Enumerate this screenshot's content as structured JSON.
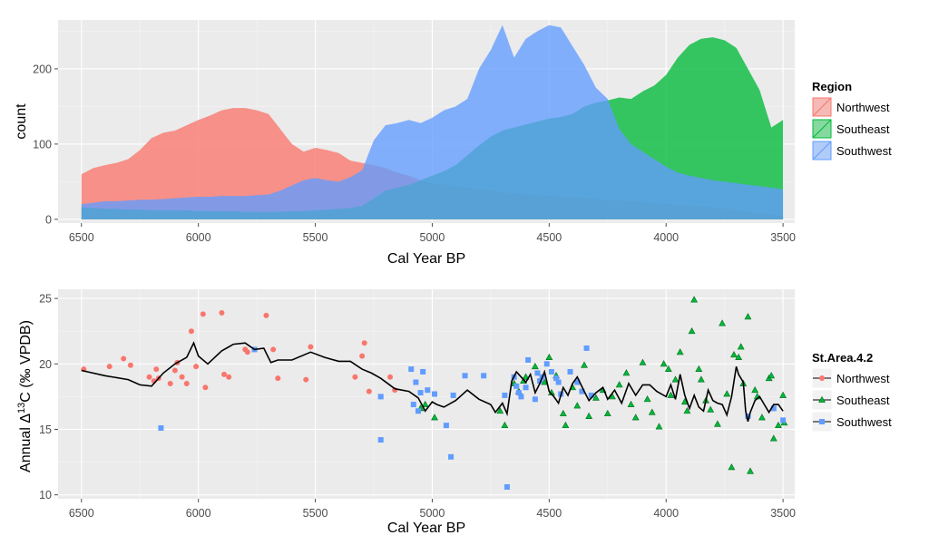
{
  "colors": {
    "panel_bg": "#ebebeb",
    "grid_major": "#ffffff",
    "grid_minor": "#f5f5f5",
    "northwest": "#F8766D",
    "southeast": "#00BA38",
    "southwest": "#619CFF",
    "smooth_line": "#000000",
    "axis_text": "#4d4d4d"
  },
  "chart_data": [
    {
      "type": "area",
      "xlabel": "Cal Year BP",
      "ylabel": "count",
      "x_reversed": true,
      "xlim": [
        6600,
        3450
      ],
      "ylim": [
        -5,
        265
      ],
      "x_ticks": [
        6500,
        6000,
        5500,
        5000,
        4500,
        4000,
        3500
      ],
      "y_ticks": [
        0,
        100,
        200
      ],
      "grid": true,
      "legend": {
        "title": "Region",
        "placement": "right",
        "entries": [
          "Northwest",
          "Southeast",
          "Southwest"
        ]
      },
      "x": [
        6500,
        6450,
        6400,
        6350,
        6300,
        6250,
        6200,
        6150,
        6100,
        6050,
        6000,
        5950,
        5900,
        5850,
        5800,
        5750,
        5700,
        5650,
        5600,
        5550,
        5500,
        5450,
        5400,
        5350,
        5300,
        5250,
        5200,
        5150,
        5100,
        5050,
        5000,
        4950,
        4900,
        4850,
        4800,
        4750,
        4700,
        4650,
        4600,
        4550,
        4500,
        4450,
        4400,
        4350,
        4300,
        4250,
        4200,
        4150,
        4100,
        4050,
        4000,
        3950,
        3900,
        3850,
        3800,
        3750,
        3700,
        3650,
        3600,
        3550,
        3500
      ],
      "series": [
        {
          "name": "Northwest",
          "values": [
            60,
            68,
            72,
            75,
            80,
            92,
            108,
            115,
            118,
            125,
            132,
            138,
            145,
            148,
            148,
            145,
            140,
            120,
            100,
            90,
            95,
            92,
            88,
            78,
            75,
            72,
            68,
            62,
            58,
            52,
            48,
            46,
            44,
            42,
            40,
            38,
            36,
            34,
            33,
            32,
            31,
            30,
            29,
            28,
            27,
            26,
            25,
            24,
            23,
            22,
            20,
            19,
            18,
            17,
            16,
            14,
            12,
            10,
            8,
            6,
            5
          ]
        },
        {
          "name": "Southeast",
          "values": [
            16,
            15,
            14,
            14,
            13,
            13,
            12,
            12,
            12,
            12,
            11,
            11,
            11,
            11,
            10,
            10,
            10,
            10,
            11,
            11,
            12,
            13,
            14,
            15,
            18,
            28,
            38,
            42,
            46,
            52,
            58,
            64,
            72,
            85,
            98,
            110,
            118,
            122,
            126,
            130,
            134,
            136,
            140,
            150,
            155,
            158,
            162,
            160,
            170,
            178,
            192,
            215,
            232,
            240,
            242,
            238,
            228,
            200,
            172,
            122,
            132
          ]
        },
        {
          "name": "Southwest",
          "values": [
            20,
            22,
            24,
            24,
            25,
            26,
            26,
            27,
            28,
            29,
            30,
            30,
            31,
            31,
            31,
            32,
            33,
            38,
            45,
            52,
            55,
            52,
            50,
            56,
            65,
            105,
            125,
            128,
            132,
            128,
            135,
            145,
            150,
            160,
            200,
            225,
            258,
            215,
            240,
            250,
            258,
            255,
            230,
            205,
            175,
            160,
            120,
            100,
            90,
            80,
            70,
            62,
            58,
            55,
            52,
            50,
            48,
            46,
            44,
            42,
            40
          ]
        }
      ]
    },
    {
      "type": "scatter",
      "xlabel": "Cal Year BP",
      "ylabel": "Annual Δ13C (‰ VPDB)",
      "x_reversed": true,
      "xlim": [
        6600,
        3450
      ],
      "ylim": [
        9.7,
        25.7
      ],
      "x_ticks": [
        6500,
        6000,
        5500,
        5000,
        4500,
        4000,
        3500
      ],
      "y_ticks": [
        10,
        15,
        20,
        25
      ],
      "grid": true,
      "legend": {
        "title": "St.Area.4.2",
        "placement": "right",
        "entries": [
          "Northwest",
          "Southeast",
          "Southwest"
        ]
      },
      "series": [
        {
          "name": "Northwest",
          "marker": "circle",
          "points": [
            [
              6490,
              19.6
            ],
            [
              6380,
              19.8
            ],
            [
              6320,
              20.4
            ],
            [
              6290,
              19.9
            ],
            [
              6210,
              19.0
            ],
            [
              6190,
              18.7
            ],
            [
              6180,
              19.6
            ],
            [
              6170,
              18.9
            ],
            [
              6120,
              18.5
            ],
            [
              6100,
              19.5
            ],
            [
              6090,
              20.1
            ],
            [
              6070,
              19.0
            ],
            [
              6050,
              18.5
            ],
            [
              6030,
              22.5
            ],
            [
              6010,
              19.8
            ],
            [
              5980,
              23.8
            ],
            [
              5970,
              18.2
            ],
            [
              5900,
              23.9
            ],
            [
              5890,
              19.2
            ],
            [
              5870,
              19.0
            ],
            [
              5800,
              21.1
            ],
            [
              5790,
              20.9
            ],
            [
              5710,
              23.7
            ],
            [
              5680,
              21.1
            ],
            [
              5660,
              18.9
            ],
            [
              5540,
              18.8
            ],
            [
              5520,
              21.3
            ],
            [
              5330,
              19.0
            ],
            [
              5300,
              20.6
            ],
            [
              5290,
              21.6
            ],
            [
              5270,
              17.9
            ],
            [
              5180,
              19.0
            ],
            [
              5160,
              18.0
            ]
          ]
        },
        {
          "name": "Southeast",
          "marker": "triangle",
          "points": [
            [
              5050,
              16.6
            ],
            [
              5030,
              16.9
            ],
            [
              4990,
              15.9
            ],
            [
              4710,
              16.4
            ],
            [
              4690,
              15.3
            ],
            [
              4650,
              18.5
            ],
            [
              4630,
              17.9
            ],
            [
              4610,
              18.7
            ],
            [
              4600,
              19.0
            ],
            [
              4560,
              19.8
            ],
            [
              4520,
              18.6
            ],
            [
              4500,
              20.5
            ],
            [
              4490,
              17.8
            ],
            [
              4470,
              19.1
            ],
            [
              4440,
              16.2
            ],
            [
              4430,
              15.3
            ],
            [
              4400,
              18.2
            ],
            [
              4380,
              16.8
            ],
            [
              4350,
              19.9
            ],
            [
              4330,
              16.0
            ],
            [
              4300,
              17.4
            ],
            [
              4270,
              18.0
            ],
            [
              4250,
              16.2
            ],
            [
              4230,
              17.5
            ],
            [
              4200,
              18.4
            ],
            [
              4170,
              19.3
            ],
            [
              4150,
              16.9
            ],
            [
              4130,
              15.9
            ],
            [
              4100,
              20.1
            ],
            [
              4080,
              17.3
            ],
            [
              4060,
              16.3
            ],
            [
              4030,
              15.2
            ],
            [
              4010,
              20.0
            ],
            [
              3990,
              19.6
            ],
            [
              3980,
              17.6
            ],
            [
              3960,
              18.8
            ],
            [
              3940,
              20.9
            ],
            [
              3920,
              17.1
            ],
            [
              3910,
              16.4
            ],
            [
              3890,
              22.5
            ],
            [
              3880,
              24.9
            ],
            [
              3860,
              19.6
            ],
            [
              3850,
              18.8
            ],
            [
              3830,
              17.2
            ],
            [
              3810,
              16.5
            ],
            [
              3780,
              15.4
            ],
            [
              3760,
              23.1
            ],
            [
              3740,
              17.7
            ],
            [
              3720,
              12.1
            ],
            [
              3710,
              20.7
            ],
            [
              3690,
              20.5
            ],
            [
              3680,
              21.3
            ],
            [
              3670,
              18.5
            ],
            [
              3650,
              23.6
            ],
            [
              3640,
              11.8
            ],
            [
              3620,
              18.0
            ],
            [
              3610,
              17.5
            ],
            [
              3590,
              15.9
            ],
            [
              3560,
              18.9
            ],
            [
              3550,
              19.1
            ],
            [
              3540,
              14.3
            ],
            [
              3520,
              15.3
            ],
            [
              3500,
              17.6
            ],
            [
              3495,
              15.5
            ]
          ]
        },
        {
          "name": "Southwest",
          "marker": "square",
          "points": [
            [
              6160,
              15.1
            ],
            [
              5760,
              21.1
            ],
            [
              5220,
              17.5
            ],
            [
              5220,
              14.2
            ],
            [
              5090,
              19.6
            ],
            [
              5080,
              16.9
            ],
            [
              5070,
              18.6
            ],
            [
              5060,
              16.4
            ],
            [
              5050,
              17.8
            ],
            [
              5040,
              19.4
            ],
            [
              5020,
              18.0
            ],
            [
              4990,
              17.7
            ],
            [
              4940,
              15.3
            ],
            [
              4920,
              12.9
            ],
            [
              4910,
              17.6
            ],
            [
              4860,
              19.1
            ],
            [
              4780,
              19.1
            ],
            [
              4690,
              17.6
            ],
            [
              4680,
              10.6
            ],
            [
              4650,
              19.0
            ],
            [
              4640,
              18.3
            ],
            [
              4630,
              17.8
            ],
            [
              4620,
              17.5
            ],
            [
              4600,
              18.2
            ],
            [
              4590,
              20.3
            ],
            [
              4560,
              17.3
            ],
            [
              4550,
              19.3
            ],
            [
              4540,
              18.7
            ],
            [
              4530,
              19.0
            ],
            [
              4510,
              20.0
            ],
            [
              4490,
              19.4
            ],
            [
              4470,
              18.9
            ],
            [
              4460,
              18.6
            ],
            [
              4450,
              17.7
            ],
            [
              4410,
              19.4
            ],
            [
              4380,
              18.6
            ],
            [
              4360,
              17.9
            ],
            [
              4340,
              21.2
            ],
            [
              4320,
              17.6
            ],
            [
              3650,
              16.0
            ],
            [
              3540,
              16.6
            ],
            [
              3500,
              15.7
            ]
          ]
        }
      ],
      "smooth_line": {
        "x": [
          6500,
          6400,
          6300,
          6250,
          6200,
          6150,
          6100,
          6050,
          6020,
          6000,
          5960,
          5900,
          5850,
          5800,
          5760,
          5720,
          5690,
          5660,
          5600,
          5520,
          5460,
          5400,
          5350,
          5300,
          5260,
          5220,
          5160,
          5100,
          5060,
          5030,
          5000,
          4980,
          4950,
          4900,
          4850,
          4800,
          4750,
          4730,
          4700,
          4680,
          4660,
          4640,
          4620,
          4600,
          4580,
          4560,
          4540,
          4520,
          4500,
          4480,
          4460,
          4440,
          4420,
          4400,
          4380,
          4350,
          4330,
          4300,
          4270,
          4250,
          4220,
          4190,
          4160,
          4130,
          4100,
          4070,
          4040,
          4000,
          3980,
          3960,
          3940,
          3920,
          3900,
          3880,
          3860,
          3840,
          3820,
          3800,
          3780,
          3760,
          3740,
          3720,
          3700,
          3690,
          3670,
          3660,
          3650,
          3640,
          3620,
          3600,
          3580,
          3560,
          3540,
          3520,
          3500
        ],
        "y": [
          19.5,
          19.1,
          18.8,
          18.4,
          18.3,
          19.3,
          20.0,
          20.5,
          21.6,
          20.6,
          20.0,
          21.0,
          21.5,
          21.6,
          21.1,
          21.2,
          20.1,
          20.3,
          20.3,
          20.9,
          20.5,
          20.2,
          20.2,
          19.6,
          19.3,
          18.9,
          18.1,
          17.9,
          17.4,
          16.4,
          17.1,
          16.9,
          16.7,
          17.2,
          18.0,
          17.3,
          16.9,
          16.3,
          17.0,
          16.2,
          18.7,
          19.4,
          19.0,
          18.6,
          19.2,
          17.8,
          18.5,
          19.4,
          17.9,
          17.5,
          17.0,
          18.2,
          17.6,
          18.5,
          19.0,
          17.9,
          17.2,
          17.8,
          18.2,
          17.3,
          18.0,
          17.0,
          18.5,
          17.6,
          18.4,
          18.4,
          17.9,
          17.5,
          18.4,
          17.3,
          19.2,
          17.6,
          16.6,
          17.6,
          16.7,
          16.4,
          18.0,
          17.2,
          17.0,
          16.9,
          16.1,
          17.5,
          19.8,
          19.2,
          18.6,
          16.4,
          15.6,
          16.3,
          17.2,
          17.5,
          16.9,
          16.3,
          16.9,
          16.9,
          16.4
        ]
      }
    }
  ]
}
